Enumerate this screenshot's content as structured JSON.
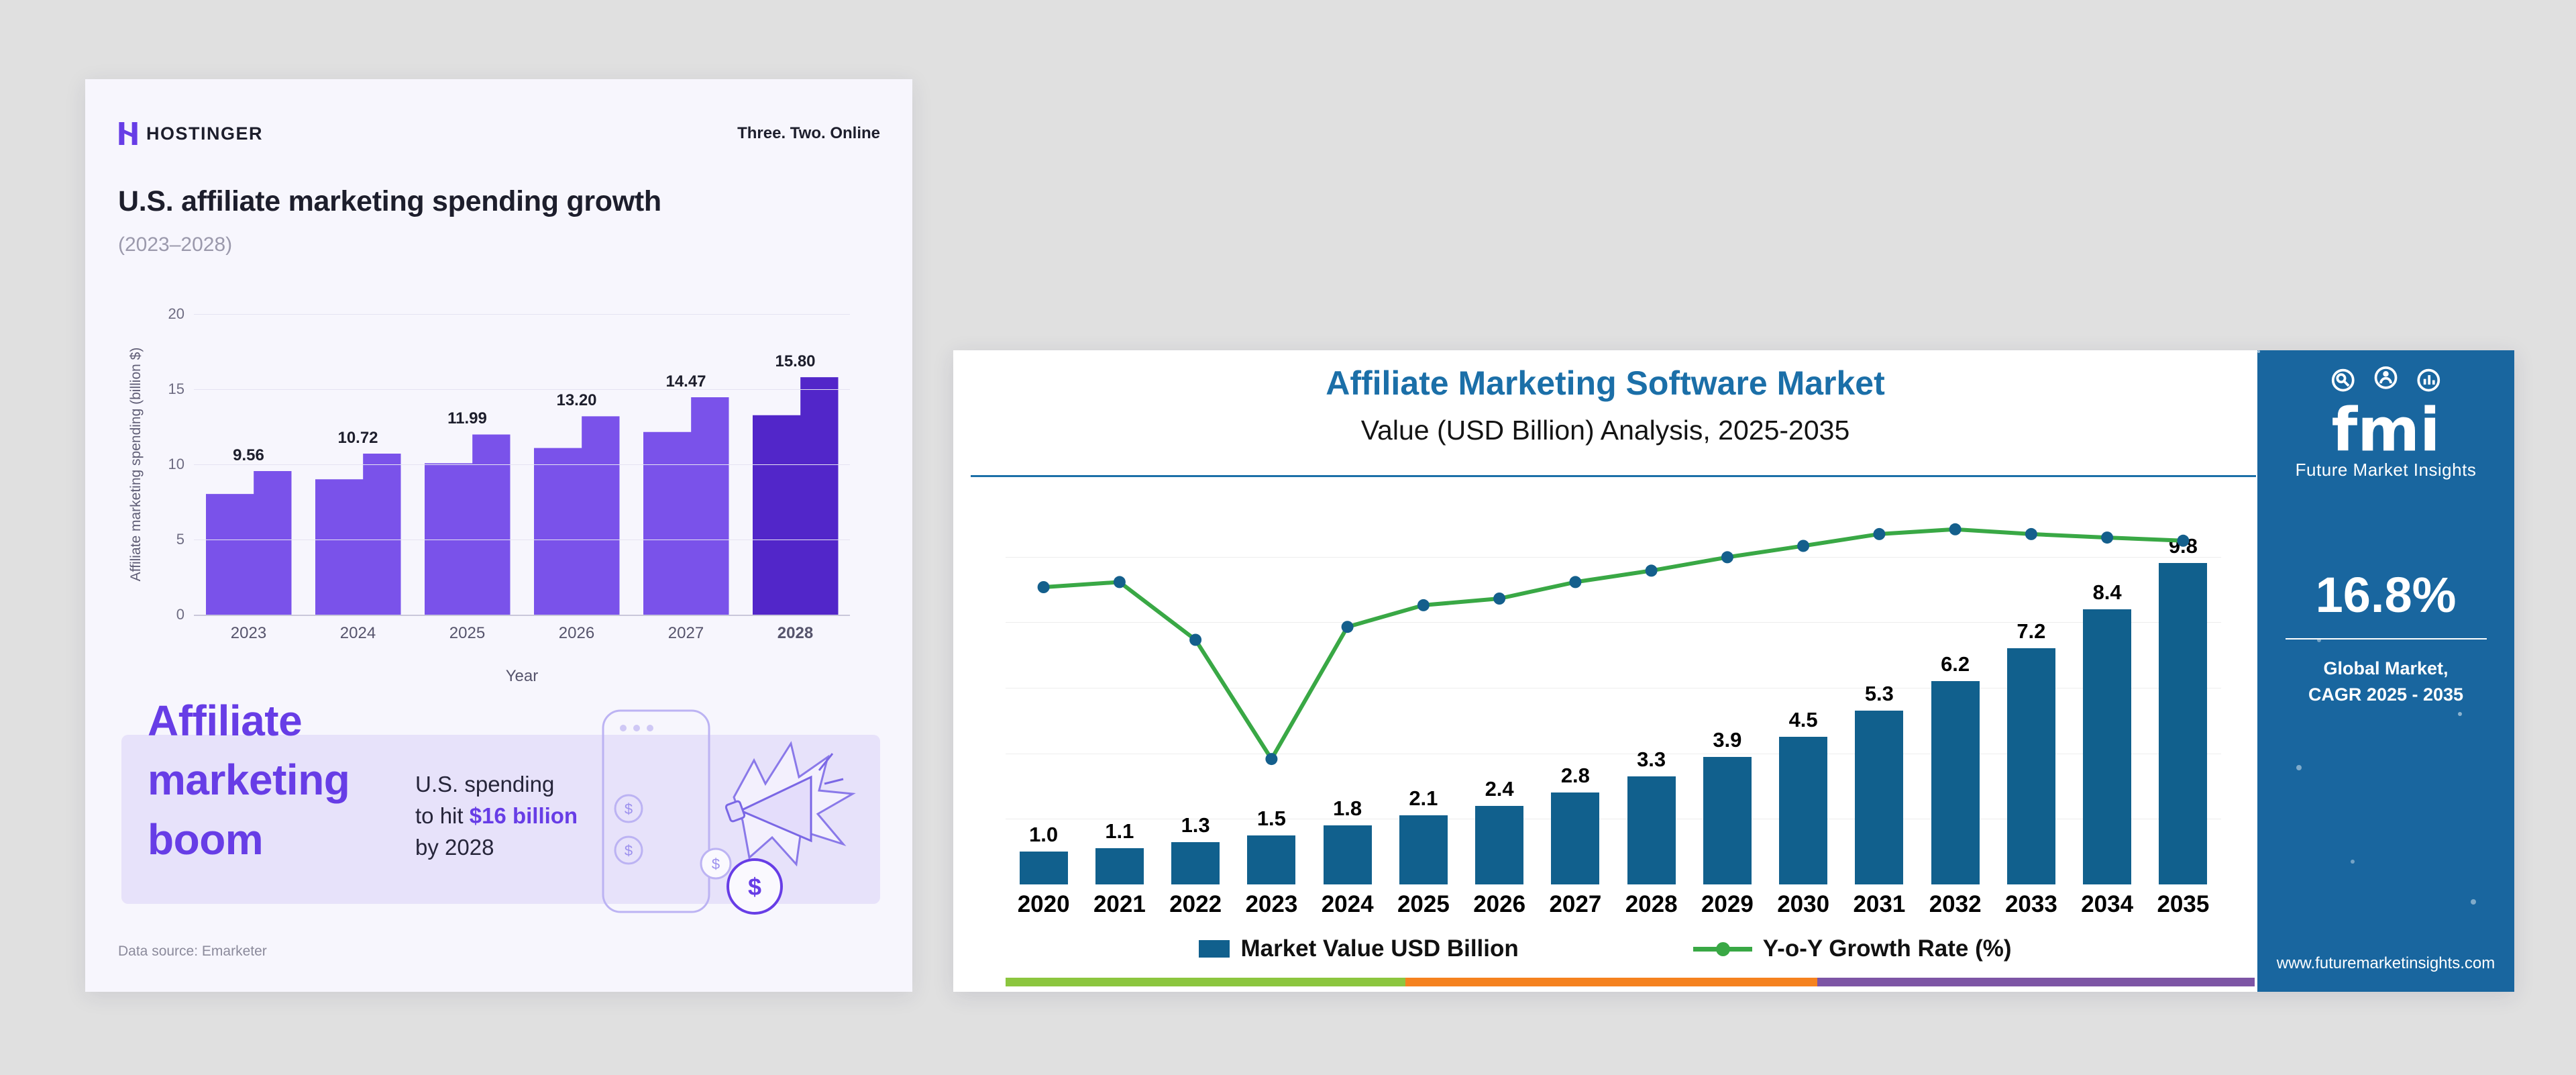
{
  "hostinger_card": {
    "brand": {
      "name": "HOSTINGER",
      "tagline": "Three. Two. Online"
    },
    "title": "U.S. affiliate marketing spending growth",
    "subtitle": "(2023–2028)",
    "boom": {
      "headline_lines": [
        "Affiliate",
        "marketing",
        "boom"
      ],
      "line1": "U.S. spending",
      "line2_prefix": "to hit ",
      "highlight": "$16 billion",
      "line3": "by 2028"
    },
    "source": "Data source: Emarketer",
    "colors": {
      "accent": "#673de6",
      "panel": "#e7e2fa",
      "card_background": "#f7f6fd",
      "text": "#1d1e2c"
    }
  },
  "fmi_card": {
    "title": "Affiliate Marketing Software Market",
    "subtitle": "Value (USD Billion) Analysis, 2025-2035",
    "title_color": "#1b6fa8",
    "stripes": [
      "#8cc63f",
      "#f5821f",
      "#7d55a5"
    ],
    "sidebar": {
      "logo_text": "fmi",
      "logo_caption": "Future Market Insights",
      "cagr_value": "16.8%",
      "market_line1": "Global Market,",
      "market_line2": "CAGR 2025 - 2035",
      "website": "www.futuremarketinsights.com",
      "background": "#19669f"
    }
  },
  "chart_data": [
    {
      "type": "bar",
      "title": "U.S. affiliate marketing spending growth (2023–2028)",
      "categories": [
        "2023",
        "2024",
        "2025",
        "2026",
        "2027",
        "2028"
      ],
      "values": [
        9.56,
        10.72,
        11.99,
        13.2,
        14.47,
        15.8
      ],
      "value_labels": [
        "9.56",
        "10.72",
        "11.99",
        "13.20",
        "14.47",
        "15.80"
      ],
      "xlabel": "Year",
      "ylabel": "Affiliate marketing spending (billion $)",
      "ylim": [
        0,
        20
      ],
      "yticks": [
        0,
        5,
        10,
        15,
        20
      ],
      "grid": true,
      "legend": false,
      "colors": {
        "bar": "#7a52ea",
        "last_bar": "#5226c9"
      }
    },
    {
      "type": "bar+line",
      "title": "Affiliate Marketing Software Market",
      "subtitle": "Value (USD Billion) Analysis, 2025-2035",
      "categories": [
        "2020",
        "2021",
        "2022",
        "2023",
        "2024",
        "2025",
        "2026",
        "2027",
        "2028",
        "2029",
        "2030",
        "2031",
        "2032",
        "2033",
        "2034",
        "2035"
      ],
      "series": [
        {
          "name": "Market Value USD Billion",
          "type": "bar",
          "color": "#11608d",
          "values": [
            1.0,
            1.1,
            1.3,
            1.5,
            1.8,
            2.1,
            2.4,
            2.8,
            3.3,
            3.9,
            4.5,
            5.3,
            6.2,
            7.2,
            8.4,
            9.8
          ],
          "value_labels": [
            "1.0",
            "1.1",
            "1.3",
            "1.5",
            "1.8",
            "2.1",
            "2.4",
            "2.8",
            "3.3",
            "3.9",
            "4.5",
            "5.3",
            "6.2",
            "7.2",
            "8.4",
            "9.8"
          ]
        },
        {
          "name": "Y-o-Y Growth Rate (%)",
          "type": "line",
          "color": "#39a845",
          "dot_color": "#145f8c",
          "axis_note": "growth axis unlabeled; point heights estimated as percent of plot height",
          "plot_heights_pct": [
            75.6,
            76.9,
            62.2,
            31.9,
            65.5,
            71.0,
            72.7,
            76.9,
            79.8,
            83.2,
            86.1,
            89.1,
            90.3,
            89.1,
            88.2,
            87.4
          ]
        }
      ],
      "ylim": [
        0,
        12
      ],
      "grid": true,
      "legend_position": "bottom"
    }
  ]
}
